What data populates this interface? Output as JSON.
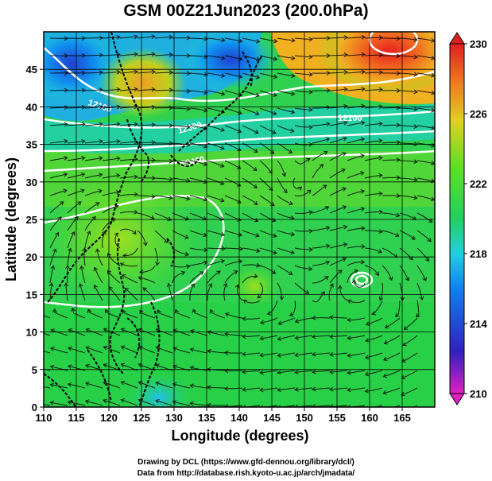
{
  "title": "GSM 00Z21Jun2023 (200.0hPa)",
  "x_axis": {
    "label": "Longitude (degrees)",
    "ticks": [
      "110",
      "115",
      "120",
      "125",
      "130",
      "135",
      "140",
      "145",
      "150",
      "155",
      "160",
      "165"
    ]
  },
  "y_axis": {
    "label": "Latitude (degrees)",
    "ticks": [
      "0",
      "5",
      "10",
      "15",
      "20",
      "25",
      "30",
      "35",
      "40",
      "45"
    ]
  },
  "colorbar": {
    "ticks": [
      "210",
      "214",
      "218",
      "222",
      "226",
      "230"
    ],
    "colors": [
      "#e020c0",
      "#2020c0",
      "#20c0ff",
      "#20d060",
      "#60e020",
      "#f0c020",
      "#f06020",
      "#e02020"
    ]
  },
  "contour_labels": [
    "12100",
    "12300",
    "12400",
    "12100"
  ],
  "credits": {
    "line1": "Drawing by DCL (https://www.gfd-dennou.org/library/dcl/)",
    "line2": "Data from http://database.rish.kyoto-u.ac.jp/arch/jmadata/"
  }
}
